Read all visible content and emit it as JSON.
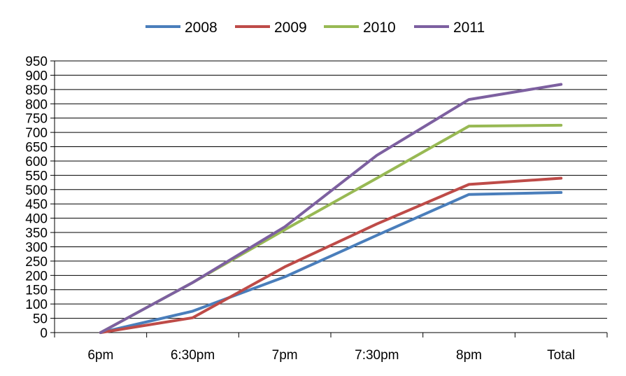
{
  "chart_data": {
    "type": "line",
    "title": "",
    "xlabel": "",
    "ylabel": "",
    "categories": [
      "6pm",
      "6:30pm",
      "7pm",
      "7:30pm",
      "8pm",
      "Total"
    ],
    "ylim": [
      0,
      950
    ],
    "yticks": [
      0,
      50,
      100,
      150,
      200,
      250,
      300,
      350,
      400,
      450,
      500,
      550,
      600,
      650,
      700,
      750,
      800,
      850,
      900,
      950
    ],
    "grid": true,
    "legend_position": "top",
    "series": [
      {
        "name": "2008",
        "color": "#4A7EBB",
        "values": [
          0,
          75,
          195,
          340,
          483,
          490
        ]
      },
      {
        "name": "2009",
        "color": "#BE4B48",
        "values": [
          0,
          52,
          230,
          380,
          518,
          540
        ]
      },
      {
        "name": "2010",
        "color": "#98B954",
        "values": [
          0,
          175,
          360,
          540,
          722,
          725
        ]
      },
      {
        "name": "2011",
        "color": "#7D60A0",
        "values": [
          0,
          175,
          370,
          620,
          815,
          868
        ]
      }
    ]
  }
}
